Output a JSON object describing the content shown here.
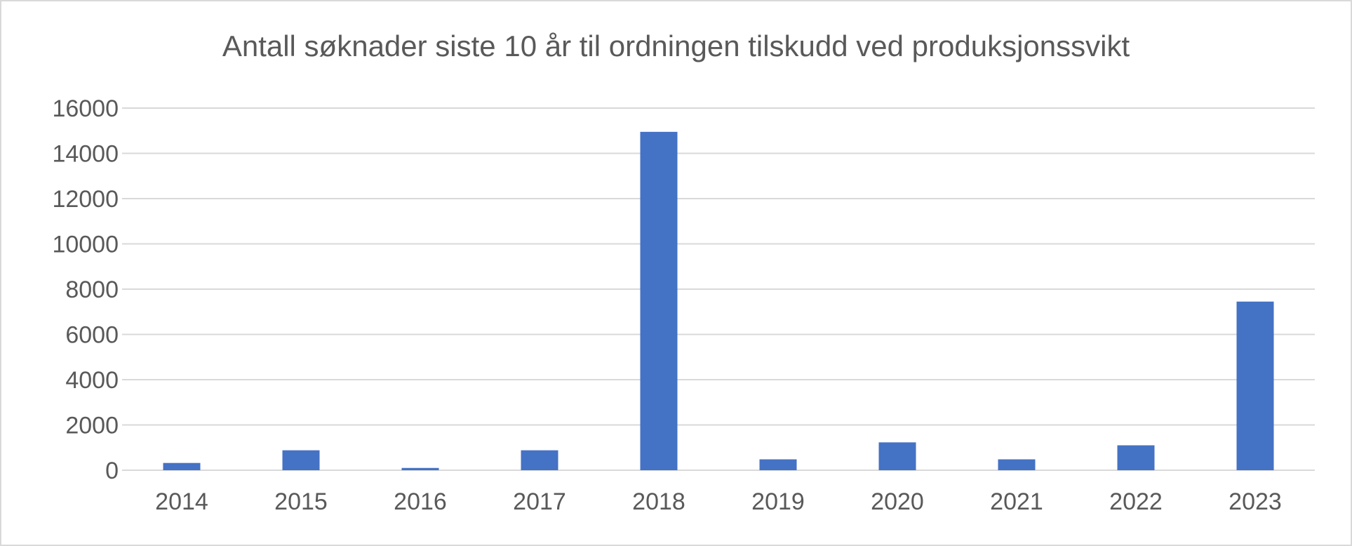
{
  "chart_data": {
    "type": "bar",
    "title": "Antall søknader siste 10 år til ordningen tilskudd ved produksjonssvikt",
    "xlabel": "",
    "ylabel": "",
    "categories": [
      "2014",
      "2015",
      "2016",
      "2017",
      "2018",
      "2019",
      "2020",
      "2021",
      "2022",
      "2023"
    ],
    "values": [
      320,
      880,
      100,
      880,
      14950,
      480,
      1230,
      480,
      1100,
      7450
    ],
    "ylim": [
      0,
      16000
    ],
    "yticks": [
      0,
      2000,
      4000,
      6000,
      8000,
      10000,
      12000,
      14000,
      16000
    ],
    "grid": true,
    "legend": "none",
    "bar_color": "#4472c4",
    "grid_color": "#d9d9d9",
    "text_color": "#595959"
  }
}
